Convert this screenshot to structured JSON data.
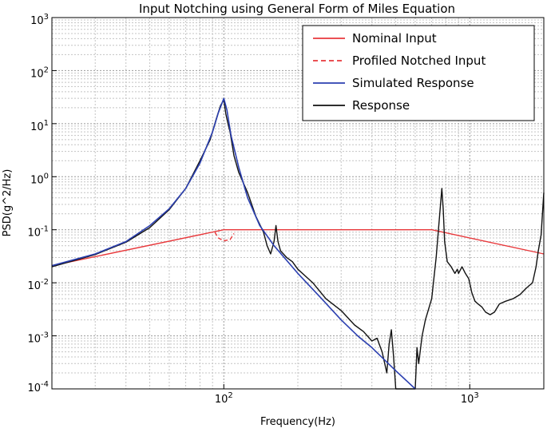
{
  "chart_data": {
    "type": "line",
    "title": "Input Notching using General Form of Miles Equation",
    "xlabel": "Frequency(Hz)",
    "ylabel": "PSD(g^2/Hz)",
    "xscale": "log",
    "yscale": "log",
    "xlim": [
      20,
      2000
    ],
    "ylim": [
      0.0001,
      1000
    ],
    "grid": true,
    "legend_position": "top-right",
    "x_tick_labels": [
      {
        "value": 100,
        "base": "10",
        "exp": "2"
      },
      {
        "value": 1000,
        "base": "10",
        "exp": "3"
      }
    ],
    "y_tick_labels": [
      {
        "value": 0.0001,
        "base": "10",
        "exp": "-4"
      },
      {
        "value": 0.001,
        "base": "10",
        "exp": "-3"
      },
      {
        "value": 0.01,
        "base": "10",
        "exp": "-2"
      },
      {
        "value": 0.1,
        "base": "10",
        "exp": "-1"
      },
      {
        "value": 1,
        "base": "10",
        "exp": "0"
      },
      {
        "value": 10,
        "base": "10",
        "exp": "1"
      },
      {
        "value": 100,
        "base": "10",
        "exp": "2"
      },
      {
        "value": 1000,
        "base": "10",
        "exp": "3"
      }
    ],
    "series": [
      {
        "name": "Nominal Input",
        "color": "#e8383b",
        "dash": "solid",
        "points": [
          [
            20,
            0.021
          ],
          [
            100,
            0.1
          ],
          [
            700,
            0.1
          ],
          [
            2000,
            0.035
          ]
        ]
      },
      {
        "name": "Profiled Notched Input",
        "color": "#e8383b",
        "dash": "dashed",
        "points": [
          [
            92,
            0.09
          ],
          [
            95,
            0.07
          ],
          [
            100,
            0.062
          ],
          [
            106,
            0.065
          ],
          [
            110,
            0.085
          ]
        ]
      },
      {
        "name": "Simulated Response",
        "color": "#2b3fb0",
        "dash": "solid",
        "points": [
          [
            20,
            0.021
          ],
          [
            30,
            0.035
          ],
          [
            40,
            0.06
          ],
          [
            50,
            0.12
          ],
          [
            60,
            0.25
          ],
          [
            70,
            0.6
          ],
          [
            80,
            1.8
          ],
          [
            90,
            7
          ],
          [
            95,
            16
          ],
          [
            100,
            30
          ],
          [
            103,
            18
          ],
          [
            107,
            6
          ],
          [
            115,
            1.5
          ],
          [
            125,
            0.4
          ],
          [
            140,
            0.12
          ],
          [
            160,
            0.05
          ],
          [
            200,
            0.015
          ],
          [
            250,
            0.005
          ],
          [
            300,
            0.002
          ],
          [
            350,
            0.001
          ],
          [
            400,
            0.0006
          ],
          [
            500,
            0.00022
          ],
          [
            600,
            0.0001
          ]
        ]
      },
      {
        "name": "Response",
        "color": "#111111",
        "dash": "solid",
        "points": [
          [
            20,
            0.02
          ],
          [
            30,
            0.034
          ],
          [
            40,
            0.058
          ],
          [
            50,
            0.11
          ],
          [
            60,
            0.24
          ],
          [
            70,
            0.6
          ],
          [
            80,
            2.0
          ],
          [
            88,
            5
          ],
          [
            93,
            12
          ],
          [
            97,
            22
          ],
          [
            100,
            28
          ],
          [
            102,
            15
          ],
          [
            104,
            10
          ],
          [
            106,
            7
          ],
          [
            110,
            2.5
          ],
          [
            115,
            1.2
          ],
          [
            125,
            0.5
          ],
          [
            135,
            0.18
          ],
          [
            145,
            0.09
          ],
          [
            150,
            0.05
          ],
          [
            155,
            0.035
          ],
          [
            160,
            0.06
          ],
          [
            163,
            0.12
          ],
          [
            166,
            0.06
          ],
          [
            170,
            0.04
          ],
          [
            180,
            0.03
          ],
          [
            190,
            0.025
          ],
          [
            200,
            0.018
          ],
          [
            230,
            0.01
          ],
          [
            260,
            0.005
          ],
          [
            300,
            0.003
          ],
          [
            340,
            0.0016
          ],
          [
            370,
            0.0012
          ],
          [
            400,
            0.0008
          ],
          [
            420,
            0.0009
          ],
          [
            440,
            0.0005
          ],
          [
            460,
            0.0002
          ],
          [
            470,
            0.0007
          ],
          [
            480,
            0.0013
          ],
          [
            490,
            0.0004
          ],
          [
            500,
            0.0001
          ],
          [
            560,
            0.0001
          ],
          [
            600,
            0.0001
          ],
          [
            610,
            0.0006
          ],
          [
            620,
            0.0003
          ],
          [
            640,
            0.001
          ],
          [
            660,
            0.002
          ],
          [
            700,
            0.005
          ],
          [
            730,
            0.03
          ],
          [
            755,
            0.2
          ],
          [
            770,
            0.6
          ],
          [
            780,
            0.25
          ],
          [
            790,
            0.06
          ],
          [
            810,
            0.025
          ],
          [
            840,
            0.02
          ],
          [
            870,
            0.015
          ],
          [
            890,
            0.018
          ],
          [
            900,
            0.015
          ],
          [
            930,
            0.02
          ],
          [
            960,
            0.015
          ],
          [
            990,
            0.012
          ],
          [
            1020,
            0.0065
          ],
          [
            1050,
            0.0045
          ],
          [
            1080,
            0.004
          ],
          [
            1120,
            0.0035
          ],
          [
            1160,
            0.0028
          ],
          [
            1210,
            0.0025
          ],
          [
            1260,
            0.0028
          ],
          [
            1320,
            0.004
          ],
          [
            1400,
            0.0045
          ],
          [
            1500,
            0.005
          ],
          [
            1600,
            0.006
          ],
          [
            1700,
            0.008
          ],
          [
            1800,
            0.01
          ],
          [
            1860,
            0.02
          ],
          [
            1900,
            0.04
          ],
          [
            1950,
            0.08
          ],
          [
            1980,
            0.25
          ],
          [
            2000,
            0.5
          ]
        ]
      }
    ]
  }
}
